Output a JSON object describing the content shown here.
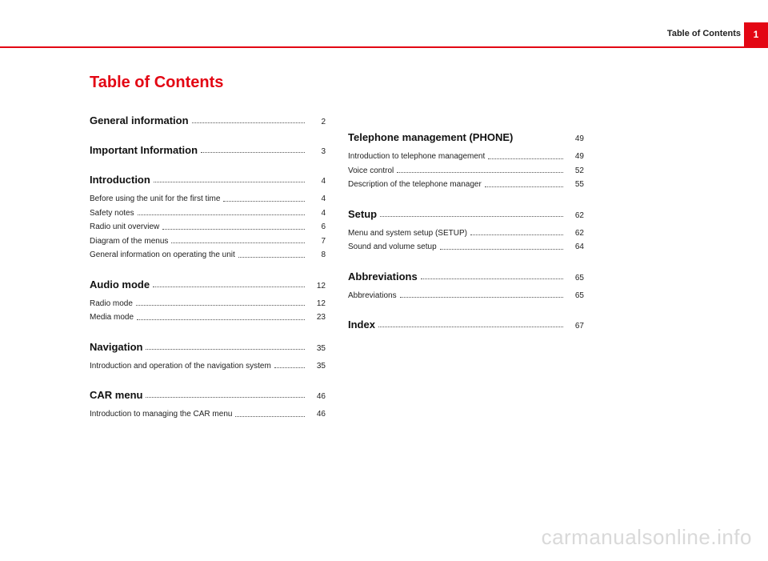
{
  "header": {
    "label": "Table of Contents",
    "page_number": "1",
    "accent_color": "#e30613"
  },
  "title": "Table of Contents",
  "watermark": "carmanualsonline.info",
  "columns": {
    "left": [
      {
        "type": "section",
        "label": "General information",
        "page": "2",
        "dots": true
      },
      {
        "type": "section",
        "label": "Important Information",
        "page": "3",
        "dots": true
      },
      {
        "type": "section",
        "label": "Introduction",
        "page": "4",
        "dots": true
      },
      {
        "type": "entry",
        "label": "Before using the unit for the first time",
        "page": "4"
      },
      {
        "type": "entry",
        "label": "Safety notes",
        "page": "4"
      },
      {
        "type": "entry",
        "label": "Radio unit overview",
        "page": "6"
      },
      {
        "type": "entry",
        "label": "Diagram of the menus",
        "page": "7"
      },
      {
        "type": "entry",
        "label": "General information on operating the unit",
        "page": "8"
      },
      {
        "type": "section",
        "label": "Audio mode",
        "page": "12",
        "dots": true
      },
      {
        "type": "entry",
        "label": "Radio mode",
        "page": "12"
      },
      {
        "type": "entry",
        "label": "Media mode",
        "page": "23"
      },
      {
        "type": "section",
        "label": "Navigation",
        "page": "35",
        "dots": true
      },
      {
        "type": "entry",
        "label": "Introduction and operation of the navigation system",
        "page": "35"
      },
      {
        "type": "section",
        "label": "CAR menu",
        "page": "46",
        "dots": true
      },
      {
        "type": "entry",
        "label": "Introduction to managing the CAR menu",
        "page": "46"
      }
    ],
    "right": [
      {
        "type": "section",
        "label": "Telephone management (PHONE)",
        "page": "49",
        "dots": false
      },
      {
        "type": "entry",
        "label": "Introduction to telephone management",
        "page": "49"
      },
      {
        "type": "entry",
        "label": "Voice control",
        "page": "52"
      },
      {
        "type": "entry",
        "label": "Description of the telephone manager",
        "page": "55"
      },
      {
        "type": "section",
        "label": "Setup",
        "page": "62",
        "dots": true
      },
      {
        "type": "entry",
        "label": "Menu and system setup (SETUP)",
        "page": "62"
      },
      {
        "type": "entry",
        "label": "Sound and volume setup",
        "page": "64"
      },
      {
        "type": "section",
        "label": "Abbreviations",
        "page": "65",
        "dots": true
      },
      {
        "type": "entry",
        "label": "Abbreviations",
        "page": "65"
      },
      {
        "type": "section",
        "label": "Index",
        "page": "67",
        "dots": true
      }
    ]
  }
}
